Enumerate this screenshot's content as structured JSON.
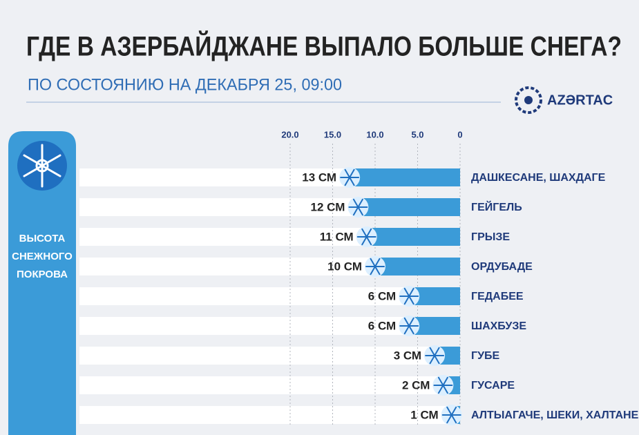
{
  "chart_data": {
    "type": "bar",
    "orientation": "horizontal",
    "title": "ГДЕ В АЗЕРБАЙДЖАНЕ ВЫПАЛО БОЛЬШЕ СНЕГА?",
    "subtitle": "ПО СОСТОЯНИЮ НА ДЕКАБРЯ 25, 09:00",
    "logo": "AZƏRTAC",
    "y_label": [
      "ВЫСОТА",
      "СНЕЖНОГО",
      "ПОКРОВА"
    ],
    "categories": [
      "ДАШКЕСАНЕ, ШАХДАГЕ",
      "ГЕЙГЕЛЬ",
      "ГРЫЗЕ",
      "ОРДУБАДЕ",
      "ГЕДАБЕЕ",
      "ШАХБУЗЕ",
      "ГУБЕ",
      "ГУСАРЕ",
      "АЛТЫАГАЧЕ, ШЕКИ, ХАЛТАНЕ"
    ],
    "values": [
      13,
      12,
      11,
      10,
      6,
      6,
      3,
      2,
      1
    ],
    "value_labels": [
      "13 СМ",
      "12 СМ",
      "11 СМ",
      "10 СМ",
      "6 СМ",
      "6 СМ",
      "3 СМ",
      "2 СМ",
      "1 СМ"
    ],
    "color": "#3b9bd8",
    "xlim": [
      0,
      20
    ],
    "xticks": [
      {
        "value": 20,
        "label": "20.0"
      },
      {
        "value": 15,
        "label": "15.0"
      },
      {
        "value": 10,
        "label": "10.0"
      },
      {
        "value": 5,
        "label": "5.0"
      },
      0
    ],
    "grid": true
  }
}
